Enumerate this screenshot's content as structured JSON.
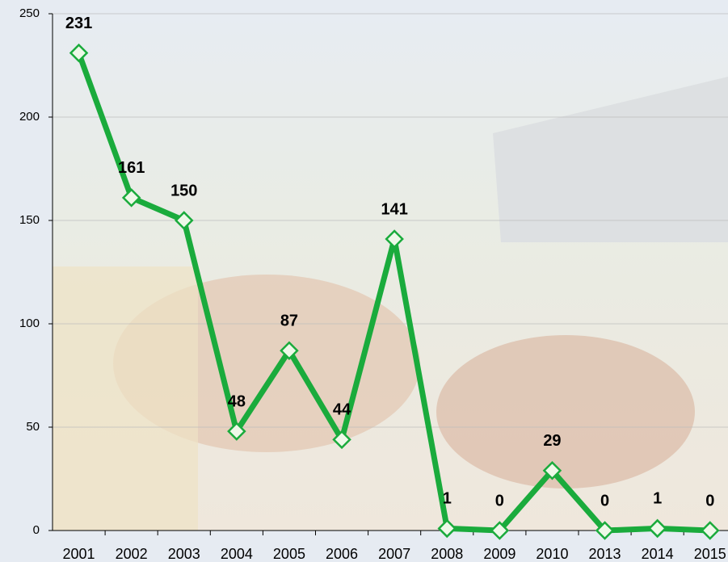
{
  "chart_data": {
    "type": "line",
    "categories": [
      "2001",
      "2002",
      "2003",
      "2004",
      "2005",
      "2006",
      "2007",
      "2008",
      "2009",
      "2010",
      "2013",
      "2014",
      "2015"
    ],
    "values": [
      231,
      161,
      150,
      48,
      87,
      44,
      141,
      1,
      0,
      29,
      0,
      1,
      0
    ],
    "color": "#1aab3c",
    "ylim": [
      0,
      250
    ],
    "yticks": [
      0,
      50,
      100,
      150,
      200,
      250
    ],
    "grid": true
  }
}
